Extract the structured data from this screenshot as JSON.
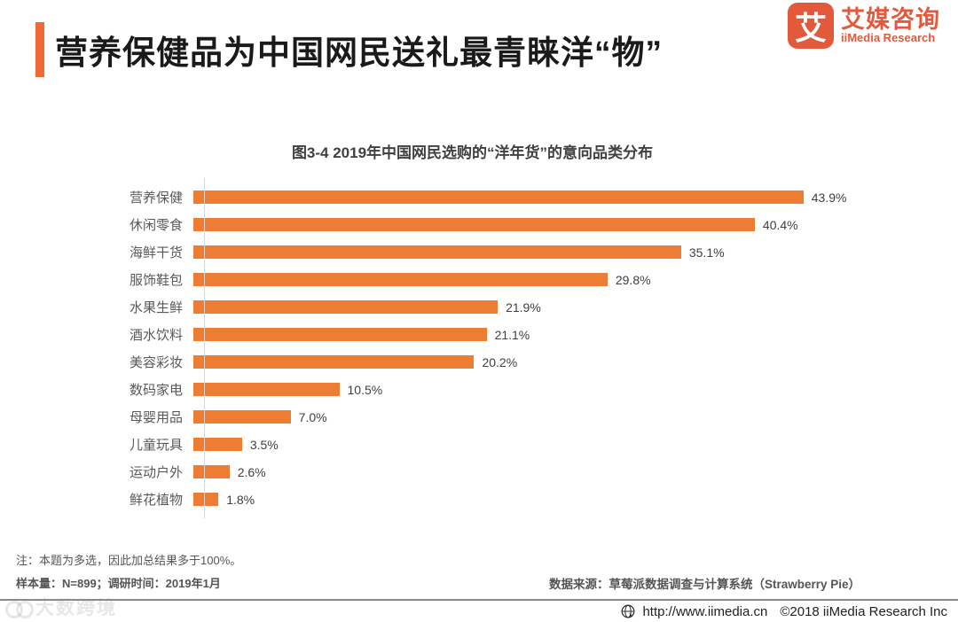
{
  "header": {
    "title": "营养保健品为中国网民送礼最青睐洋“物”",
    "logo": {
      "tile_char": "艾",
      "name_cn": "艾媒咨询",
      "name_en": "iiMedia Research"
    }
  },
  "chart_data": {
    "type": "bar",
    "orientation": "horizontal",
    "title": "图3-4 2019年中国网民选购的“洋年货”的意向品类分布",
    "categories": [
      "营养保健",
      "休闲零食",
      "海鲜干货",
      "服饰鞋包",
      "水果生鲜",
      "酒水饮料",
      "美容彩妆",
      "数码家电",
      "母婴用品",
      "儿童玩具",
      "运动户外",
      "鲜花植物"
    ],
    "values": [
      43.9,
      40.4,
      35.1,
      29.8,
      21.9,
      21.1,
      20.2,
      10.5,
      7.0,
      3.5,
      2.6,
      1.8
    ],
    "value_labels": [
      "43.9%",
      "40.4%",
      "35.1%",
      "29.8%",
      "21.9%",
      "21.1%",
      "20.2%",
      "10.5%",
      "7.0%",
      "3.5%",
      "2.6%",
      "1.8%"
    ],
    "xlim": [
      0,
      45
    ],
    "grid": "off",
    "legend": "none",
    "xlabel": "",
    "ylabel": "",
    "bar_color": "#EC7D33"
  },
  "notes": {
    "note1": "注：本题为多选，因此加总结果多于100%。",
    "note2": "样本量：N=899；调研时间：2019年1月",
    "source": "数据来源：草莓派数据调查与计算系统（Strawberry Pie）"
  },
  "footer": {
    "url": "http://www.iimedia.cn",
    "copyright": "©2018  iiMedia Research Inc",
    "watermark": "大数跨境"
  },
  "colors": {
    "accent_bar": "#F06A38",
    "logo_orange": "#E2593C",
    "bar_orange": "#EC7D33",
    "axis_gray": "#D6D6D6"
  }
}
